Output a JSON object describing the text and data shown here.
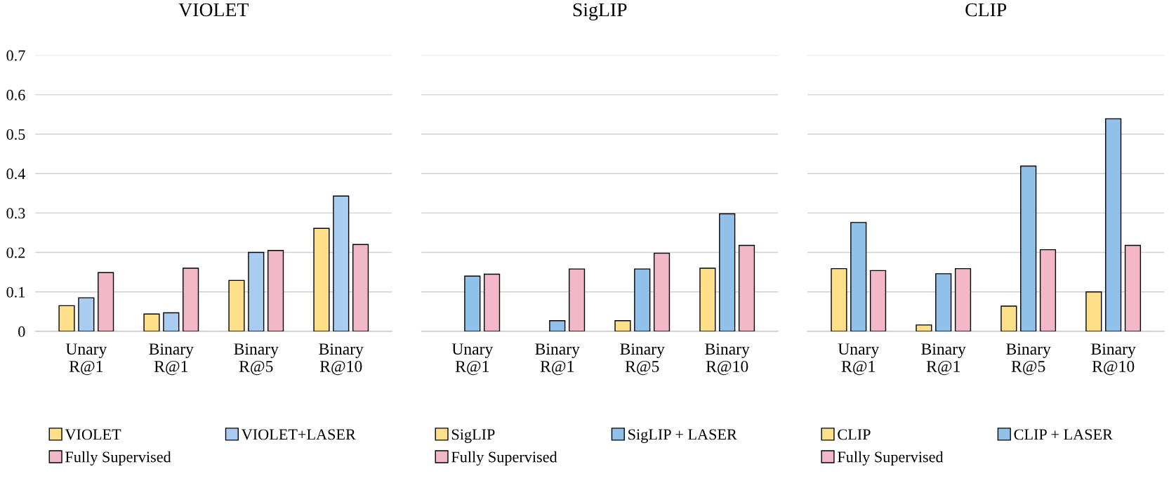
{
  "chart_data": [
    {
      "type": "bar",
      "title": "VIOLET",
      "categories": [
        "Unary\nR@1",
        "Binary\nR@1",
        "Binary\nR@5",
        "Binary\nR@10"
      ],
      "series": [
        {
          "name": "VIOLET",
          "color": "#ffe08a",
          "values": [
            0.065,
            0.044,
            0.129,
            0.261
          ]
        },
        {
          "name": "VIOLET+LASER",
          "color": "#a9cdf0",
          "values": [
            0.085,
            0.047,
            0.2,
            0.343
          ]
        },
        {
          "name": "Fully Supervised",
          "color": "#f2b8c8",
          "values": [
            0.149,
            0.16,
            0.205,
            0.22
          ]
        }
      ],
      "ylim": [
        0,
        0.7
      ],
      "yticks": [
        {
          "value": 0,
          "label": "0"
        },
        0.1,
        0.2,
        0.3,
        0.4,
        0.5,
        0.6,
        0.7
      ],
      "grid": "y",
      "legend": "bottom"
    },
    {
      "type": "bar",
      "title": "SigLIP",
      "categories": [
        "Unary\nR@1",
        "Binary\nR@1",
        "Binary\nR@5",
        "Binary\nR@10"
      ],
      "series": [
        {
          "name": "SigLIP",
          "color": "#ffe08a",
          "values": [
            null,
            null,
            0.027,
            0.16
          ]
        },
        {
          "name": "SigLIP + LASER",
          "color": "#8fc1ea",
          "values": [
            0.14,
            0.027,
            0.158,
            0.298
          ]
        },
        {
          "name": "Fully Supervised",
          "color": "#f2b8c8",
          "values": [
            0.145,
            0.158,
            0.198,
            0.218
          ]
        }
      ],
      "ylim": [
        0,
        0.7
      ],
      "yticks": [
        0,
        0.1,
        0.2,
        0.3,
        0.4,
        0.5,
        0.6,
        0.7
      ],
      "tick_labels": "x",
      "grid": "y",
      "legend": "bottom"
    },
    {
      "type": "bar",
      "title": "CLIP",
      "categories": [
        "Unary\nR@1",
        "Binary\nR@1",
        "Binary\nR@5",
        "Binary\nR@10"
      ],
      "series": [
        {
          "name": "CLIP",
          "color": "#ffe08a",
          "values": [
            0.159,
            0.016,
            0.064,
            0.1
          ]
        },
        {
          "name": "CLIP + LASER",
          "color": "#8fc1ea",
          "values": [
            0.276,
            0.146,
            0.419,
            0.539
          ]
        },
        {
          "name": "Fully Supervised",
          "color": "#f2b8c8",
          "values": [
            0.154,
            0.159,
            0.207,
            0.218
          ]
        }
      ],
      "ylim": [
        0,
        0.7
      ],
      "yticks": [
        0,
        0.1,
        0.2,
        0.3,
        0.4,
        0.5,
        0.6,
        0.7
      ],
      "tick_labels": "x",
      "grid": "y",
      "legend": "bottom"
    }
  ]
}
